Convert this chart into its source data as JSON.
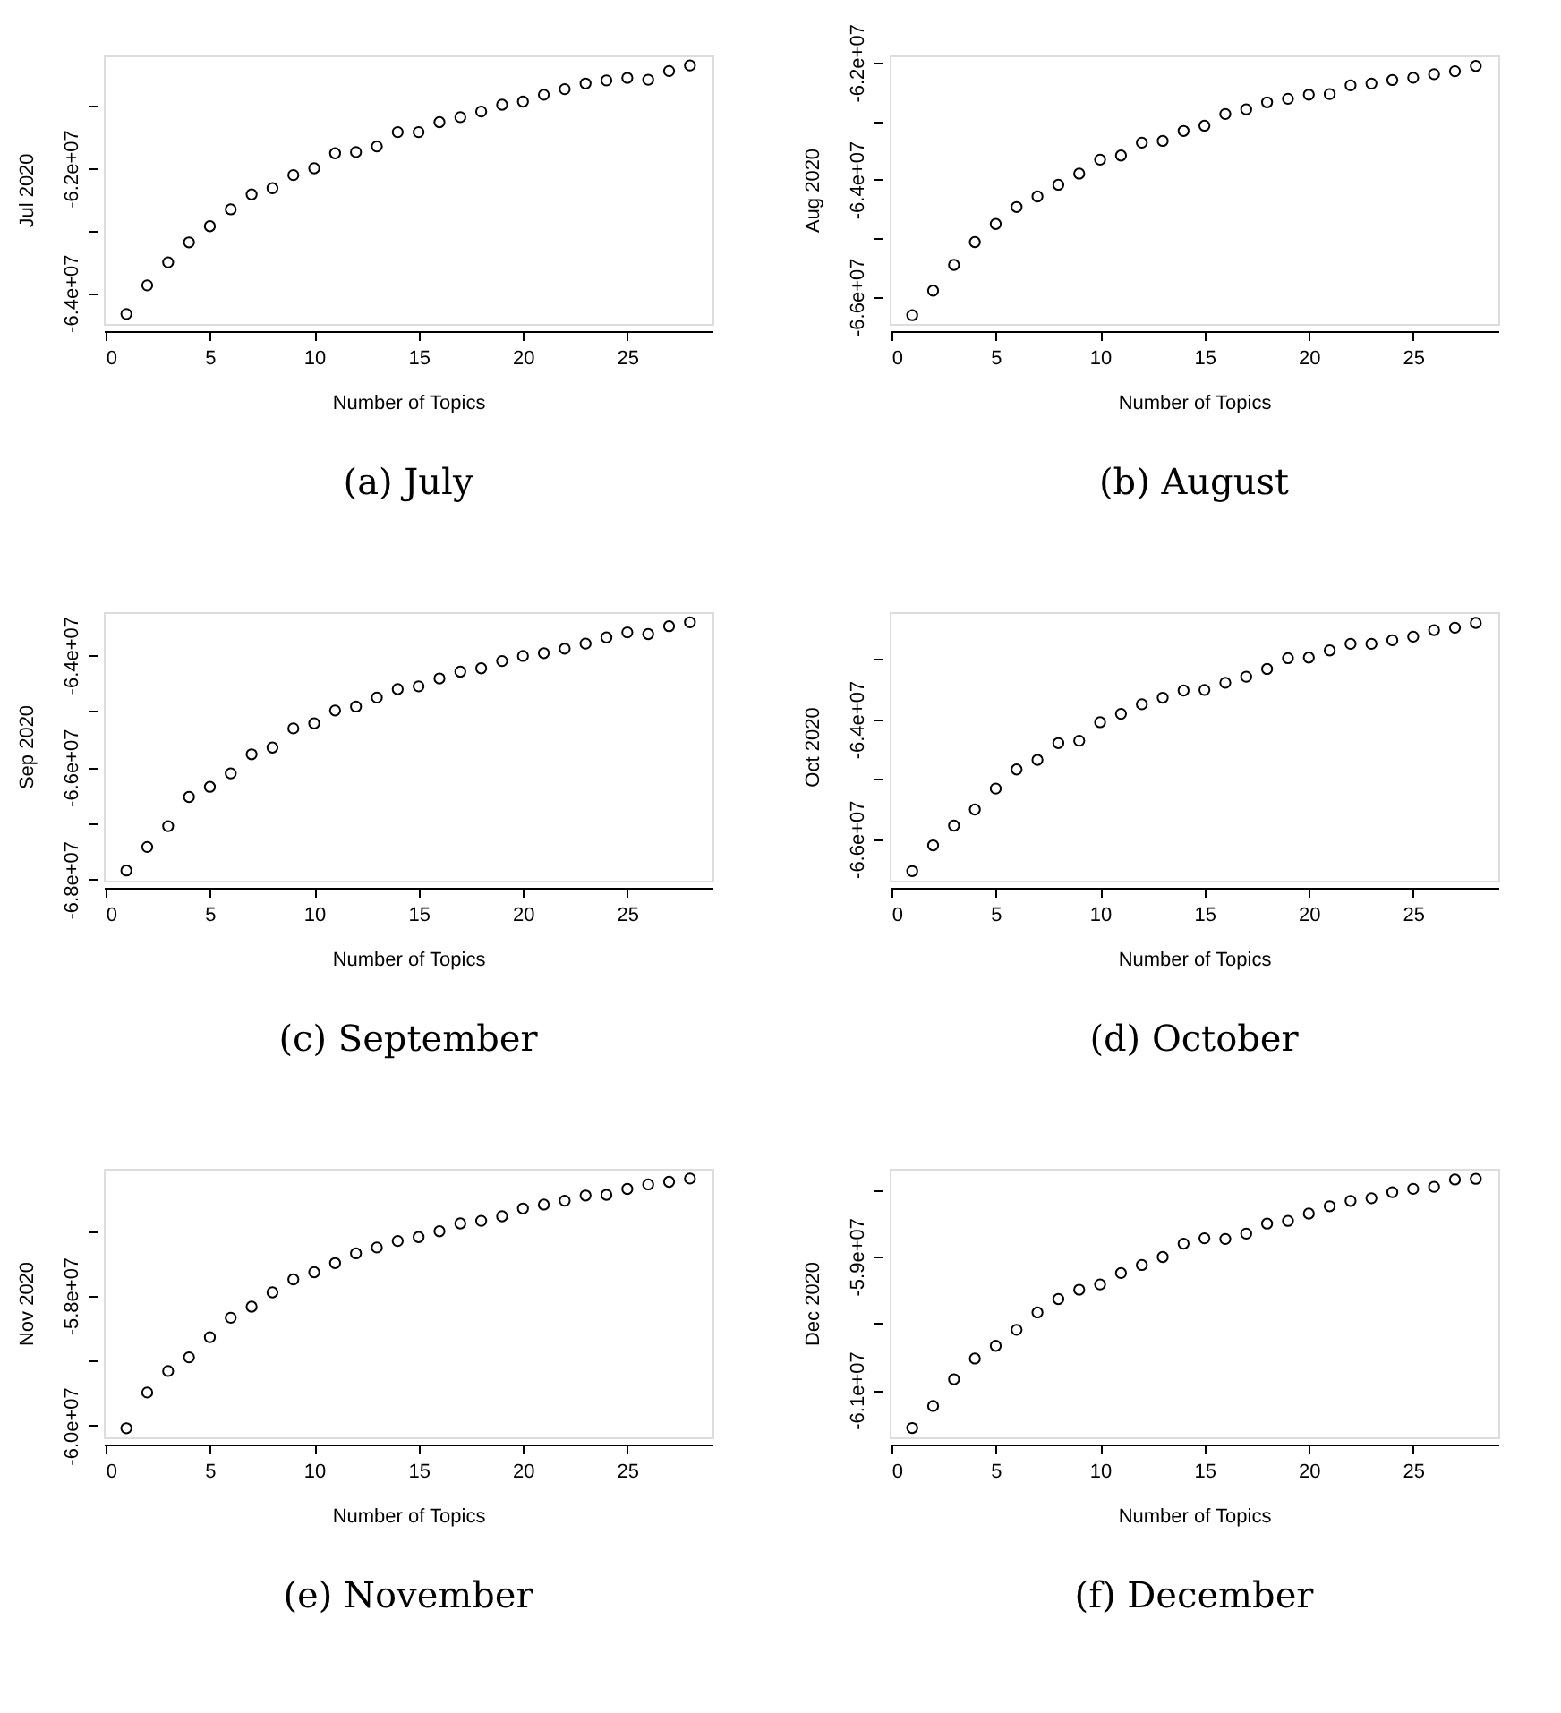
{
  "chart_data": [
    {
      "type": "scatter",
      "title": "(a) July",
      "xlabel": "Number of Topics",
      "ylabel": "Jul 2020",
      "marker": "circle",
      "grid": false,
      "x": [
        1,
        2,
        3,
        4,
        5,
        6,
        7,
        8,
        9,
        10,
        11,
        12,
        13,
        14,
        15,
        16,
        17,
        18,
        19,
        20,
        21,
        22,
        23,
        24,
        25,
        26,
        27,
        28
      ],
      "xlim": [
        -0.08,
        29.08
      ],
      "xticks": [
        0,
        5,
        10,
        15,
        20,
        25
      ],
      "ylim": [
        -64500000,
        -60190000
      ],
      "yticks": [
        {
          "value": -64000000,
          "label": "-6.4e+07"
        },
        {
          "value": -63000000,
          "label": null
        },
        {
          "value": -62000000,
          "label": "-6.2e+07"
        },
        {
          "value": -61000000,
          "label": null
        }
      ],
      "series": [
        {
          "color": "#000000",
          "values": [
            -64340000,
            -63880000,
            -63510000,
            -63190000,
            -62930000,
            -62660000,
            -62420000,
            -62320000,
            -62110000,
            -62000000,
            -61760000,
            -61740000,
            -61650000,
            -61420000,
            -61420000,
            -61260000,
            -61180000,
            -61090000,
            -60980000,
            -60930000,
            -60820000,
            -60730000,
            -60640000,
            -60590000,
            -60550000,
            -60580000,
            -60440000,
            -60350000
          ]
        }
      ]
    },
    {
      "type": "scatter",
      "title": "(b) August",
      "xlabel": "Number of Topics",
      "ylabel": "Aug 2020",
      "marker": "circle",
      "grid": false,
      "x": [
        1,
        2,
        3,
        4,
        5,
        6,
        7,
        8,
        9,
        10,
        11,
        12,
        13,
        14,
        15,
        16,
        17,
        18,
        19,
        20,
        21,
        22,
        23,
        24,
        25,
        26,
        27,
        28
      ],
      "xlim": [
        -0.08,
        29.08
      ],
      "xticks": [
        0,
        5,
        10,
        15,
        20,
        25
      ],
      "ylim": [
        -66470000,
        -61880000
      ],
      "yticks": [
        {
          "value": -66000000,
          "label": "-6.6e+07"
        },
        {
          "value": -65000000,
          "label": null
        },
        {
          "value": -64000000,
          "label": "-6.4e+07"
        },
        {
          "value": -63000000,
          "label": null
        },
        {
          "value": -62000000,
          "label": "-6.2e+07"
        }
      ],
      "series": [
        {
          "color": "#000000",
          "values": [
            -66320000,
            -65900000,
            -65460000,
            -65070000,
            -64760000,
            -64470000,
            -64290000,
            -64090000,
            -63900000,
            -63660000,
            -63590000,
            -63370000,
            -63340000,
            -63170000,
            -63080000,
            -62880000,
            -62800000,
            -62680000,
            -62620000,
            -62550000,
            -62540000,
            -62390000,
            -62360000,
            -62300000,
            -62260000,
            -62200000,
            -62150000,
            -62060000
          ]
        }
      ]
    },
    {
      "type": "scatter",
      "title": "(c) September",
      "xlabel": "Number of Topics",
      "ylabel": "Sep 2020",
      "marker": "circle",
      "grid": false,
      "x": [
        1,
        2,
        3,
        4,
        5,
        6,
        7,
        8,
        9,
        10,
        11,
        12,
        13,
        14,
        15,
        16,
        17,
        18,
        19,
        20,
        21,
        22,
        23,
        24,
        25,
        26,
        27,
        28
      ],
      "xlim": [
        -0.08,
        29.08
      ],
      "xticks": [
        0,
        5,
        10,
        15,
        20,
        25
      ],
      "ylim": [
        -68020000,
        -63240000
      ],
      "yticks": [
        {
          "value": -68000000,
          "label": "-6.8e+07"
        },
        {
          "value": -67000000,
          "label": null
        },
        {
          "value": -66000000,
          "label": "-6.6e+07"
        },
        {
          "value": -65000000,
          "label": null
        },
        {
          "value": -64000000,
          "label": "-6.4e+07"
        }
      ],
      "series": [
        {
          "color": "#000000",
          "values": [
            -67840000,
            -67420000,
            -67050000,
            -66530000,
            -66350000,
            -66110000,
            -65770000,
            -65650000,
            -65310000,
            -65220000,
            -64990000,
            -64920000,
            -64760000,
            -64610000,
            -64560000,
            -64420000,
            -64300000,
            -64240000,
            -64110000,
            -64020000,
            -63970000,
            -63890000,
            -63800000,
            -63690000,
            -63600000,
            -63630000,
            -63490000,
            -63420000
          ]
        }
      ]
    },
    {
      "type": "scatter",
      "title": "(d) October",
      "xlabel": "Number of Topics",
      "ylabel": "Oct 2020",
      "marker": "circle",
      "grid": false,
      "x": [
        1,
        2,
        3,
        4,
        5,
        6,
        7,
        8,
        9,
        10,
        11,
        12,
        13,
        14,
        15,
        16,
        17,
        18,
        19,
        20,
        21,
        22,
        23,
        24,
        25,
        26,
        27,
        28
      ],
      "xlim": [
        -0.08,
        29.08
      ],
      "xticks": [
        0,
        5,
        10,
        15,
        20,
        25
      ],
      "ylim": [
        -66700000,
        -62210000
      ],
      "yticks": [
        {
          "value": -66000000,
          "label": "-6.6e+07"
        },
        {
          "value": -65000000,
          "label": null
        },
        {
          "value": -64000000,
          "label": "-6.4e+07"
        },
        {
          "value": -63000000,
          "label": null
        }
      ],
      "series": [
        {
          "color": "#000000",
          "values": [
            -66540000,
            -66110000,
            -65780000,
            -65510000,
            -65160000,
            -64840000,
            -64680000,
            -64400000,
            -64360000,
            -64050000,
            -63910000,
            -63750000,
            -63640000,
            -63520000,
            -63510000,
            -63390000,
            -63290000,
            -63160000,
            -62980000,
            -62970000,
            -62850000,
            -62740000,
            -62740000,
            -62680000,
            -62620000,
            -62510000,
            -62470000,
            -62390000
          ]
        }
      ]
    },
    {
      "type": "scatter",
      "title": "(e) November",
      "xlabel": "Number of Topics",
      "ylabel": "Nov 2020",
      "marker": "circle",
      "grid": false,
      "x": [
        1,
        2,
        3,
        4,
        5,
        6,
        7,
        8,
        9,
        10,
        11,
        12,
        13,
        14,
        15,
        16,
        17,
        18,
        19,
        20,
        21,
        22,
        23,
        24,
        25,
        26,
        27,
        28
      ],
      "xlim": [
        -0.08,
        29.08
      ],
      "xticks": [
        0,
        5,
        10,
        15,
        20,
        25
      ],
      "ylim": [
        -60180000,
        -56050000
      ],
      "yticks": [
        {
          "value": -60000000,
          "label": "-6.0e+07"
        },
        {
          "value": -59000000,
          "label": null
        },
        {
          "value": -58000000,
          "label": "-5.8e+07"
        },
        {
          "value": -57000000,
          "label": null
        }
      ],
      "series": [
        {
          "color": "#000000",
          "values": [
            -60040000,
            -59490000,
            -59160000,
            -58950000,
            -58640000,
            -58340000,
            -58170000,
            -57950000,
            -57750000,
            -57640000,
            -57500000,
            -57350000,
            -57260000,
            -57160000,
            -57100000,
            -57010000,
            -56890000,
            -56850000,
            -56780000,
            -56660000,
            -56600000,
            -56540000,
            -56460000,
            -56450000,
            -56360000,
            -56290000,
            -56250000,
            -56200000
          ]
        }
      ]
    },
    {
      "type": "scatter",
      "title": "(f) December",
      "xlabel": "Number of Topics",
      "ylabel": "Dec 2020",
      "marker": "circle",
      "grid": false,
      "x": [
        1,
        2,
        3,
        4,
        5,
        6,
        7,
        8,
        9,
        10,
        11,
        12,
        13,
        14,
        15,
        16,
        17,
        18,
        19,
        20,
        21,
        22,
        23,
        24,
        25,
        26,
        27,
        28
      ],
      "xlim": [
        -0.08,
        29.08
      ],
      "xticks": [
        0,
        5,
        10,
        15,
        20,
        25
      ],
      "ylim": [
        -61710000,
        -57690000
      ],
      "yticks": [
        {
          "value": -61000000,
          "label": "-6.1e+07"
        },
        {
          "value": -60000000,
          "label": null
        },
        {
          "value": -59000000,
          "label": "-5.9e+07"
        },
        {
          "value": -58000000,
          "label": null
        }
      ],
      "series": [
        {
          "color": "#000000",
          "values": [
            -61570000,
            -61240000,
            -60840000,
            -60530000,
            -60340000,
            -60100000,
            -59840000,
            -59640000,
            -59500000,
            -59420000,
            -59250000,
            -59130000,
            -59010000,
            -58810000,
            -58730000,
            -58740000,
            -58660000,
            -58510000,
            -58470000,
            -58360000,
            -58250000,
            -58170000,
            -58130000,
            -58040000,
            -57990000,
            -57960000,
            -57850000,
            -57840000
          ]
        }
      ]
    }
  ]
}
